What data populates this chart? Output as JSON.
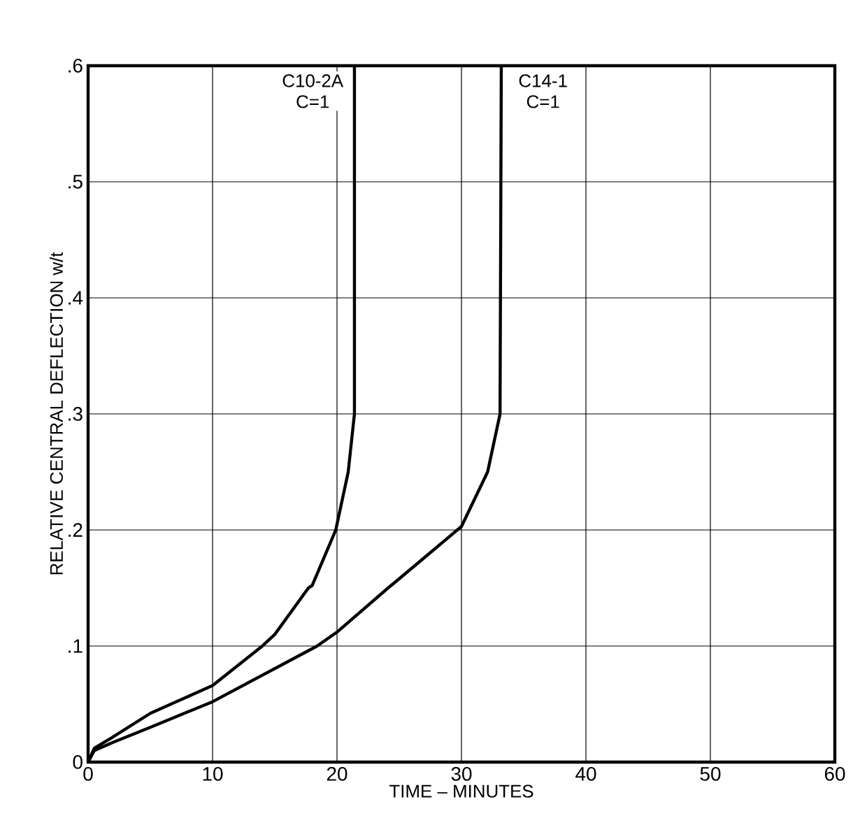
{
  "chart_data": {
    "type": "line",
    "xlabel": "TIME – MINUTES",
    "ylabel": "RELATIVE CENTRAL DEFLECTION w/t",
    "xlim": [
      0,
      60
    ],
    "xticks": [
      0,
      10,
      20,
      30,
      40,
      50,
      60
    ],
    "ylim": [
      0,
      0.6
    ],
    "yticks": [
      0,
      {
        "value": 0.1,
        "label": ".1"
      },
      {
        "value": 0.2,
        "label": ".2"
      },
      {
        "value": 0.3,
        "label": ".3"
      },
      {
        "value": 0.4,
        "label": ".4"
      },
      {
        "value": 0.5,
        "label": ".5"
      },
      {
        "value": 0.6,
        "label": ".6"
      }
    ],
    "grid": true,
    "marker": "none",
    "line_style": "solid",
    "annotations": [
      "C10-2A C=1",
      "C14-1 C=1"
    ],
    "series": [
      {
        "color": "#000000",
        "x": [
          0,
          0.5,
          1.9,
          5,
          10,
          14,
          15,
          17.7,
          18,
          19.9,
          20.9,
          21.4,
          21.4
        ],
        "values": [
          0,
          0.012,
          0.021,
          0.042,
          0.066,
          0.1,
          0.11,
          0.15,
          0.152,
          0.2,
          0.25,
          0.3,
          0.6
        ]
      },
      {
        "color": "#000000",
        "x": [
          0,
          0.5,
          2,
          5,
          10,
          18.4,
          20,
          24.1,
          25,
          30,
          32.1,
          33.1,
          33.2
        ],
        "values": [
          0,
          0.01,
          0.017,
          0.03,
          0.052,
          0.1,
          0.112,
          0.15,
          0.158,
          0.203,
          0.25,
          0.3,
          0.6
        ]
      }
    ]
  }
}
